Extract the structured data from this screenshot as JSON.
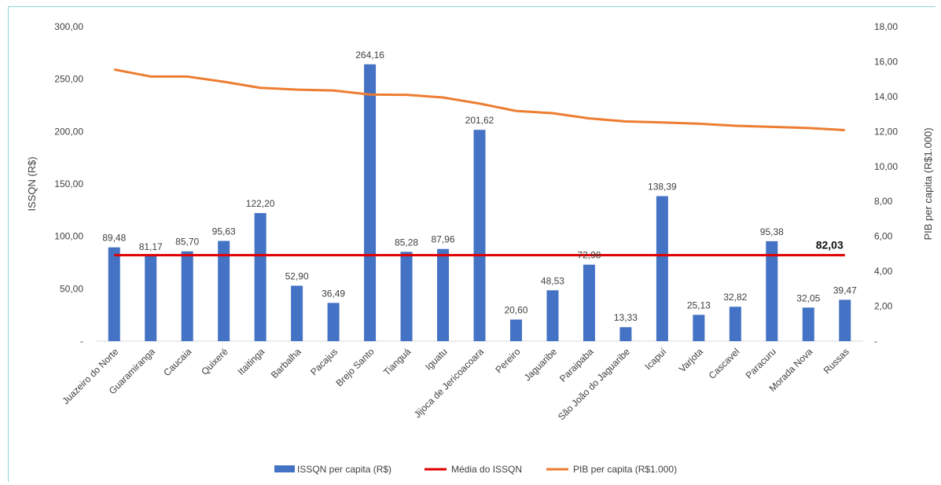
{
  "chart_data": {
    "type": "bar",
    "categories": [
      "Juazeiro do Norte",
      "Guaramiranga",
      "Caucaia",
      "Quixeré",
      "Itaitinga",
      "Barbalha",
      "Pacajus",
      "Brejo Santo",
      "Tianguá",
      "Iguatu",
      "Jijoca de Jericoacoara",
      "Pereiro",
      "Jaguaribe",
      "Paraipaba",
      "São João do Jaguaribe",
      "Icapuí",
      "Varjota",
      "Cascavel",
      "Paracuru",
      "Morada Nova",
      "Russas"
    ],
    "series": [
      {
        "name": "ISSQN per capita (R$)",
        "kind": "bar",
        "axis": "left",
        "color": "#4472c4",
        "values": [
          89.48,
          81.17,
          85.7,
          95.63,
          122.2,
          52.9,
          36.49,
          264.16,
          85.28,
          87.96,
          201.62,
          20.6,
          48.53,
          72.98,
          13.33,
          138.39,
          25.13,
          32.82,
          95.38,
          32.05,
          39.47
        ],
        "labels": [
          "89,48",
          "81,17",
          "85,70",
          "95,63",
          "122,20",
          "52,90",
          "36,49",
          "264,16",
          "85,28",
          "87,96",
          "201,62",
          "20,60",
          "48,53",
          "72,98",
          "13,33",
          "138,39",
          "25,13",
          "32,82",
          "95,38",
          "32,05",
          "39,47"
        ]
      },
      {
        "name": "Média do ISSQN",
        "kind": "line",
        "axis": "left",
        "color": "#e00000",
        "value": 82.03,
        "label": "82,03"
      },
      {
        "name": "PIB per capita (R$1.000)",
        "kind": "line",
        "axis": "right",
        "color": "#ed7d31",
        "values": [
          15.55,
          15.15,
          15.15,
          14.85,
          14.5,
          14.4,
          14.35,
          14.12,
          14.1,
          13.95,
          13.6,
          13.18,
          13.05,
          12.75,
          12.58,
          12.52,
          12.45,
          12.33,
          12.27,
          12.2,
          12.08
        ]
      }
    ],
    "y_left": {
      "label": "ISSQN (R$)",
      "min": 0,
      "max": 300,
      "step": 50,
      "tick_labels": [
        "-",
        "50,00",
        "100,00",
        "150,00",
        "200,00",
        "250,00",
        "300,00"
      ]
    },
    "y_right": {
      "label": "PIB per capita (R$1.000)",
      "min": 0,
      "max": 18,
      "step": 2,
      "tick_labels": [
        "-",
        "2,00",
        "4,00",
        "6,00",
        "8,00",
        "10,00",
        "12,00",
        "14,00",
        "16,00",
        "18,00"
      ]
    },
    "grid": false,
    "legend_position": "bottom"
  }
}
